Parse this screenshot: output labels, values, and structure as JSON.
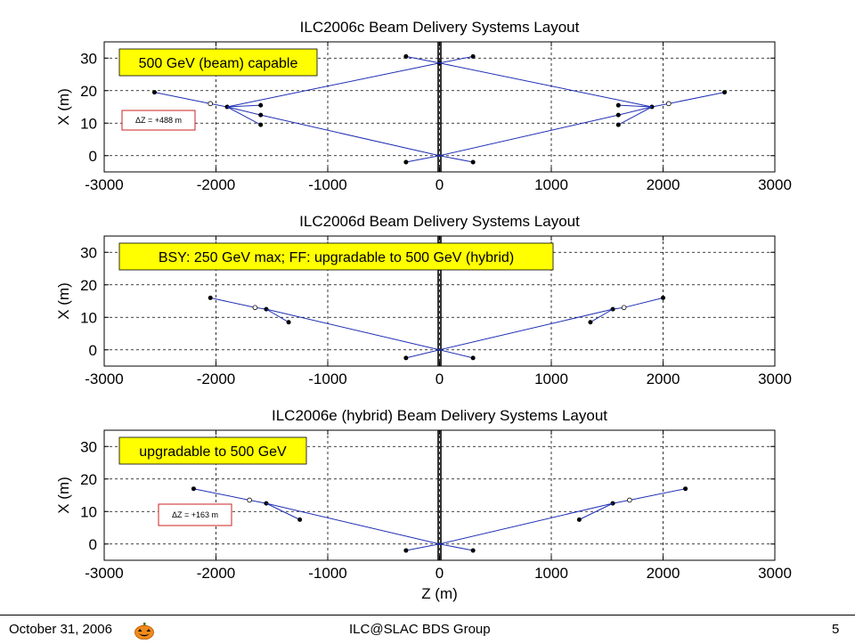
{
  "footer": {
    "date": "October 31, 2006",
    "group": "ILC@SLAC BDS Group",
    "page": "5",
    "pumpkin_icon": "pumpkin-icon"
  },
  "colors": {
    "line": "#1f2fb4",
    "annotation_yellow": "#ffff00",
    "dz_box_border": "#cc2222",
    "grid": "#000000"
  },
  "chart_data": [
    {
      "type": "line",
      "title": "ILC2006c Beam Delivery Systems Layout",
      "xlabel": "",
      "ylabel": "X (m)",
      "xlim": [
        -3000,
        3000
      ],
      "ylim": [
        -5,
        35
      ],
      "xticks": [
        -3000,
        -2000,
        -1000,
        0,
        1000,
        2000,
        3000
      ],
      "yticks": [
        0,
        10,
        20,
        30
      ],
      "grid": true,
      "note": "500 GeV (beam) capable",
      "dz_label": "ΔZ = +488 m",
      "series": [
        {
          "x": [
            0,
            -1600,
            -1900,
            -2050,
            -2550
          ],
          "y": [
            0,
            12.5,
            15,
            16,
            19.5
          ],
          "markers": [
            {
              "x": -1600,
              "y": 12.5,
              "style": "filled"
            },
            {
              "x": -1900,
              "y": 15,
              "style": "filled"
            },
            {
              "x": -2050,
              "y": 16,
              "style": "open"
            },
            {
              "x": -2550,
              "y": 19.5,
              "style": "filled"
            }
          ]
        },
        {
          "x": [
            0,
            1600,
            1900,
            2050,
            2550
          ],
          "y": [
            0,
            12.5,
            15,
            16,
            19.5
          ],
          "markers": [
            {
              "x": 1600,
              "y": 12.5,
              "style": "filled"
            },
            {
              "x": 1900,
              "y": 15,
              "style": "filled"
            },
            {
              "x": 2050,
              "y": 16,
              "style": "open"
            },
            {
              "x": 2550,
              "y": 19.5,
              "style": "filled"
            }
          ]
        },
        {
          "x": [
            0,
            -300
          ],
          "y": [
            0,
            -2
          ],
          "markers": [
            {
              "x": -300,
              "y": -2,
              "style": "filled"
            }
          ]
        },
        {
          "x": [
            0,
            300
          ],
          "y": [
            0,
            -2
          ],
          "markers": [
            {
              "x": 300,
              "y": -2,
              "style": "filled"
            }
          ]
        },
        {
          "x": [
            -1600,
            -1900
          ],
          "y": [
            9.5,
            15
          ],
          "markers": [
            {
              "x": -1600,
              "y": 9.5,
              "style": "filled"
            }
          ]
        },
        {
          "x": [
            1600,
            1900
          ],
          "y": [
            9.5,
            15
          ],
          "markers": [
            {
              "x": 1600,
              "y": 9.5,
              "style": "filled"
            }
          ]
        },
        {
          "x": [
            -1600,
            -1900
          ],
          "y": [
            15.5,
            15
          ],
          "markers": [
            {
              "x": -1600,
              "y": 15.5,
              "style": "filled"
            }
          ]
        },
        {
          "x": [
            1600,
            1900
          ],
          "y": [
            15.5,
            15
          ],
          "markers": [
            {
              "x": 1600,
              "y": 15.5,
              "style": "filled"
            }
          ]
        },
        {
          "x": [
            0,
            -1900
          ],
          "y": [
            28.5,
            15
          ],
          "markers": [
            {
              "x": 0,
              "y": 28.5,
              "style": "filled"
            }
          ]
        },
        {
          "x": [
            0,
            1900
          ],
          "y": [
            28.5,
            15
          ],
          "markers": []
        },
        {
          "x": [
            0,
            -300
          ],
          "y": [
            28.5,
            30.5
          ],
          "markers": [
            {
              "x": -300,
              "y": 30.5,
              "style": "filled"
            }
          ]
        },
        {
          "x": [
            0,
            300
          ],
          "y": [
            28.5,
            30.5
          ],
          "markers": [
            {
              "x": 300,
              "y": 30.5,
              "style": "filled"
            }
          ]
        }
      ]
    },
    {
      "type": "line",
      "title": "ILC2006d Beam Delivery Systems Layout",
      "xlabel": "",
      "ylabel": "X (m)",
      "xlim": [
        -3000,
        3000
      ],
      "ylim": [
        -5,
        35
      ],
      "xticks": [
        -3000,
        -2000,
        -1000,
        0,
        1000,
        2000,
        3000
      ],
      "yticks": [
        0,
        10,
        20,
        30
      ],
      "grid": true,
      "note": "BSY: 250 GeV max; FF: upgradable to 500 GeV (hybrid)",
      "dz_label": "",
      "series": [
        {
          "x": [
            0,
            -1550,
            -1650,
            -2050
          ],
          "y": [
            0,
            12.5,
            13,
            16
          ],
          "markers": [
            {
              "x": -1550,
              "y": 12.5,
              "style": "filled"
            },
            {
              "x": -1650,
              "y": 13,
              "style": "open"
            },
            {
              "x": -2050,
              "y": 16,
              "style": "filled"
            }
          ]
        },
        {
          "x": [
            0,
            1550,
            1650,
            2000
          ],
          "y": [
            0,
            12.5,
            13,
            16
          ],
          "markers": [
            {
              "x": 1550,
              "y": 12.5,
              "style": "filled"
            },
            {
              "x": 1650,
              "y": 13,
              "style": "open"
            },
            {
              "x": 2000,
              "y": 16,
              "style": "filled"
            }
          ]
        },
        {
          "x": [
            -1550,
            -1350
          ],
          "y": [
            12.5,
            8.5
          ],
          "markers": [
            {
              "x": -1350,
              "y": 8.5,
              "style": "filled"
            }
          ]
        },
        {
          "x": [
            1550,
            1350
          ],
          "y": [
            12.5,
            8.5
          ],
          "markers": [
            {
              "x": 1350,
              "y": 8.5,
              "style": "filled"
            }
          ]
        },
        {
          "x": [
            0,
            -300
          ],
          "y": [
            0,
            -2.5
          ],
          "markers": [
            {
              "x": -300,
              "y": -2.5,
              "style": "filled"
            }
          ]
        },
        {
          "x": [
            0,
            300
          ],
          "y": [
            0,
            -2.5
          ],
          "markers": [
            {
              "x": 300,
              "y": -2.5,
              "style": "filled"
            }
          ]
        }
      ]
    },
    {
      "type": "line",
      "title": "ILC2006e (hybrid) Beam Delivery Systems Layout",
      "xlabel": "Z (m)",
      "ylabel": "X (m)",
      "xlim": [
        -3000,
        3000
      ],
      "ylim": [
        -5,
        35
      ],
      "xticks": [
        -3000,
        -2000,
        -1000,
        0,
        1000,
        2000,
        3000
      ],
      "yticks": [
        0,
        10,
        20,
        30
      ],
      "grid": true,
      "note": "upgradable to 500 GeV",
      "dz_label": "ΔZ = +163 m",
      "series": [
        {
          "x": [
            0,
            -1550,
            -1700,
            -2200
          ],
          "y": [
            0,
            12.5,
            13.5,
            17
          ],
          "markers": [
            {
              "x": -1550,
              "y": 12.5,
              "style": "filled"
            },
            {
              "x": -1700,
              "y": 13.5,
              "style": "open"
            },
            {
              "x": -2200,
              "y": 17,
              "style": "filled"
            }
          ]
        },
        {
          "x": [
            0,
            1550,
            1700,
            2200
          ],
          "y": [
            0,
            12.5,
            13.5,
            17
          ],
          "markers": [
            {
              "x": 1550,
              "y": 12.5,
              "style": "filled"
            },
            {
              "x": 1700,
              "y": 13.5,
              "style": "open"
            },
            {
              "x": 2200,
              "y": 17,
              "style": "filled"
            }
          ]
        },
        {
          "x": [
            -1550,
            -1250
          ],
          "y": [
            12.5,
            7.5
          ],
          "markers": [
            {
              "x": -1250,
              "y": 7.5,
              "style": "filled"
            }
          ]
        },
        {
          "x": [
            1550,
            1250
          ],
          "y": [
            12.5,
            7.5
          ],
          "markers": [
            {
              "x": 1250,
              "y": 7.5,
              "style": "filled"
            }
          ]
        },
        {
          "x": [
            0,
            -300
          ],
          "y": [
            0,
            -2
          ],
          "markers": [
            {
              "x": -300,
              "y": -2,
              "style": "filled"
            }
          ]
        },
        {
          "x": [
            0,
            300
          ],
          "y": [
            0,
            -2
          ],
          "markers": [
            {
              "x": 300,
              "y": -2,
              "style": "filled"
            }
          ]
        }
      ]
    }
  ]
}
